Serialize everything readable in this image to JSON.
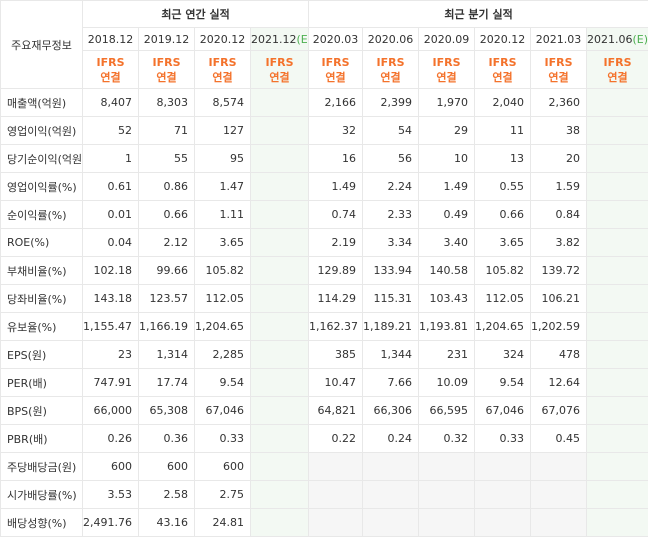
{
  "table": {
    "corner": "주요재무정보",
    "groups": [
      {
        "title": "최근 연간 실적",
        "columns": [
          {
            "period": "2018.12",
            "standard": "IFRS",
            "basis": "연결"
          },
          {
            "period": "2019.12",
            "standard": "IFRS",
            "basis": "연결"
          },
          {
            "period": "2020.12",
            "standard": "IFRS",
            "basis": "연결"
          },
          {
            "period": "2021.12",
            "estimate": "(E)",
            "standard": "IFRS",
            "basis": "연결"
          }
        ]
      },
      {
        "title": "최근 분기 실적",
        "columns": [
          {
            "period": "2020.03",
            "standard": "IFRS",
            "basis": "연결"
          },
          {
            "period": "2020.06",
            "standard": "IFRS",
            "basis": "연결"
          },
          {
            "period": "2020.09",
            "standard": "IFRS",
            "basis": "연결"
          },
          {
            "period": "2020.12",
            "standard": "IFRS",
            "basis": "연결"
          },
          {
            "period": "2021.03",
            "standard": "IFRS",
            "basis": "연결"
          },
          {
            "period": "2021.06",
            "estimate": "(E)",
            "standard": "IFRS",
            "basis": "연결"
          }
        ]
      }
    ],
    "sections": [
      {
        "rows": [
          {
            "label": "매출액(억원)",
            "values": [
              "8,407",
              "8,303",
              "8,574",
              null,
              "2,166",
              "2,399",
              "1,970",
              "2,040",
              "2,360",
              null
            ]
          },
          {
            "label": "영업이익(억원)",
            "values": [
              "52",
              "71",
              "127",
              null,
              "32",
              "54",
              "29",
              "11",
              "38",
              null
            ]
          },
          {
            "label": "당기순이익(억원)",
            "values": [
              "1",
              "55",
              "95",
              null,
              "16",
              "56",
              "10",
              "13",
              "20",
              null
            ]
          }
        ]
      },
      {
        "rows": [
          {
            "label": "영업이익률(%)",
            "values": [
              "0.61",
              "0.86",
              "1.47",
              null,
              "1.49",
              "2.24",
              "1.49",
              "0.55",
              "1.59",
              null
            ]
          },
          {
            "label": "순이익률(%)",
            "values": [
              "0.01",
              "0.66",
              "1.11",
              null,
              "0.74",
              "2.33",
              "0.49",
              "0.66",
              "0.84",
              null
            ]
          },
          {
            "label": "ROE(%)",
            "values": [
              "0.04",
              "2.12",
              "3.65",
              null,
              "2.19",
              "3.34",
              "3.40",
              "3.65",
              "3.82",
              null
            ]
          }
        ]
      },
      {
        "rows": [
          {
            "label": "부채비율(%)",
            "values": [
              "102.18",
              "99.66",
              "105.82",
              null,
              "129.89",
              "133.94",
              "140.58",
              "105.82",
              "139.72",
              null
            ]
          },
          {
            "label": "당좌비율(%)",
            "values": [
              "143.18",
              "123.57",
              "112.05",
              null,
              "114.29",
              "115.31",
              "103.43",
              "112.05",
              "106.21",
              null
            ]
          },
          {
            "label": "유보율(%)",
            "values": [
              "1,155.47",
              "1,166.19",
              "1,204.65",
              null,
              "1,162.37",
              "1,189.21",
              "1,193.81",
              "1,204.65",
              "1,202.59",
              null
            ]
          }
        ]
      },
      {
        "rows": [
          {
            "label": "EPS(원)",
            "values": [
              "23",
              "1,314",
              "2,285",
              null,
              "385",
              "1,344",
              "231",
              "324",
              "478",
              null
            ]
          },
          {
            "label": "PER(배)",
            "values": [
              "747.91",
              "17.74",
              "9.54",
              null,
              "10.47",
              "7.66",
              "10.09",
              "9.54",
              "12.64",
              null
            ]
          },
          {
            "label": "BPS(원)",
            "values": [
              "66,000",
              "65,308",
              "67,046",
              null,
              "64,821",
              "66,306",
              "66,595",
              "67,046",
              "67,076",
              null
            ]
          },
          {
            "label": "PBR(배)",
            "values": [
              "0.26",
              "0.36",
              "0.33",
              null,
              "0.22",
              "0.24",
              "0.32",
              "0.33",
              "0.45",
              null
            ]
          }
        ]
      },
      {
        "rows": [
          {
            "label": "주당배당금(원)",
            "values": [
              "600",
              "600",
              "600",
              null,
              null,
              null,
              null,
              null,
              null,
              null
            ]
          },
          {
            "label": "시가배당률(%)",
            "values": [
              "3.53",
              "2.58",
              "2.75",
              null,
              null,
              null,
              null,
              null,
              null,
              null
            ]
          },
          {
            "label": "배당성향(%)",
            "values": [
              "2,491.76",
              "43.16",
              "24.81",
              null,
              null,
              null,
              null,
              null,
              null,
              null
            ]
          }
        ]
      }
    ]
  }
}
